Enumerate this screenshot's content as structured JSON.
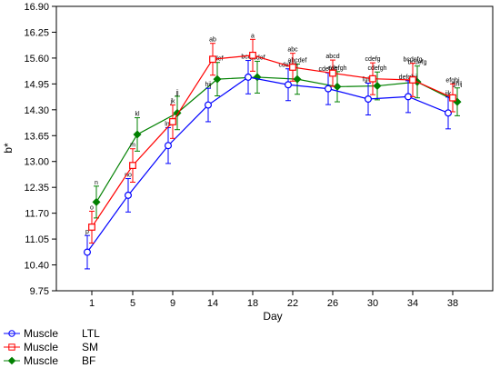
{
  "chart_data": {
    "type": "line",
    "xlabel": "Day",
    "ylabel": "b*",
    "categories": [
      "1",
      "5",
      "9",
      "14",
      "18",
      "22",
      "26",
      "30",
      "34",
      "38"
    ],
    "yticks": [
      "9.75",
      "10.40",
      "11.05",
      "11.70",
      "12.35",
      "13.00",
      "13.65",
      "14.30",
      "14.95",
      "15.60",
      "16.25",
      "16.90"
    ],
    "ylim": [
      9.75,
      16.9
    ],
    "grid": false,
    "legend_position": "bottom-left",
    "series": [
      {
        "name": "LTL",
        "color": "#0000ff",
        "marker": "circle",
        "values": [
          10.72,
          12.15,
          13.4,
          14.42,
          15.12,
          14.93,
          14.83,
          14.57,
          14.63,
          14.22
        ],
        "errors": [
          0.42,
          0.42,
          0.45,
          0.42,
          0.42,
          0.4,
          0.4,
          0.4,
          0.4,
          0.4
        ],
        "labels": [
          "p",
          "no",
          "lm",
          "hij",
          "bcde",
          "cdefgh",
          "cdefgh",
          "fghij",
          "defghij",
          "ijk"
        ]
      },
      {
        "name": "SM",
        "color": "#ff0000",
        "marker": "square",
        "values": [
          11.35,
          12.9,
          14.0,
          15.57,
          15.67,
          15.37,
          15.22,
          15.08,
          15.05,
          14.6
        ],
        "errors": [
          0.4,
          0.42,
          0.42,
          0.4,
          0.4,
          0.35,
          0.33,
          0.4,
          0.42,
          0.35
        ],
        "labels": [
          "o",
          "m",
          "jk",
          "ab",
          "a",
          "abc",
          "abcd",
          "cdefg",
          "bcdefg",
          "efghi"
        ]
      },
      {
        "name": "BF",
        "color": "#008000",
        "marker": "diamond",
        "values": [
          11.98,
          13.68,
          14.22,
          15.07,
          15.12,
          15.07,
          14.88,
          14.9,
          15.0,
          14.5
        ],
        "errors": [
          0.4,
          0.42,
          0.42,
          0.42,
          0.4,
          0.38,
          0.38,
          0.35,
          0.4,
          0.35
        ],
        "labels": [
          "n",
          "kl",
          "jj",
          "cdef",
          "bcdef",
          "abcdef",
          "cdefgh",
          "cdefgh",
          "bcdefg",
          "ghij"
        ]
      }
    ]
  },
  "legend": {
    "items": [
      {
        "factor": "Muscle",
        "level": "LTL"
      },
      {
        "factor": "Muscle",
        "level": "SM"
      },
      {
        "factor": "Muscle",
        "level": "BF"
      }
    ]
  }
}
